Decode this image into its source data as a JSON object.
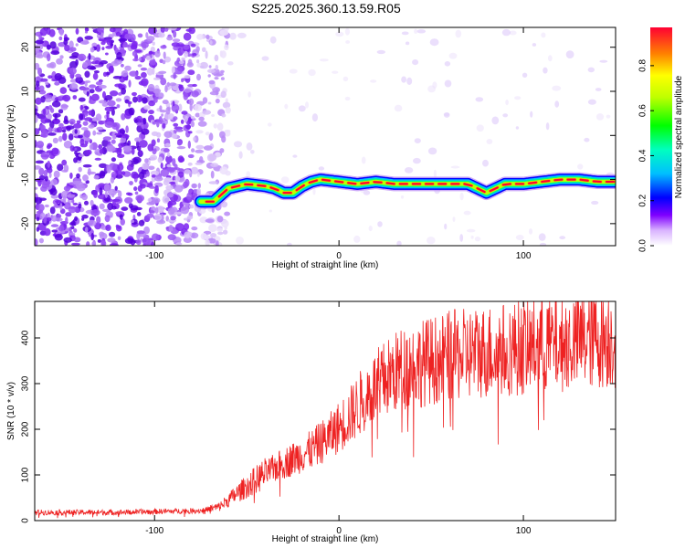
{
  "title": "S225.2025.360.13.59.R05",
  "chart_data": [
    {
      "type": "heatmap",
      "title": "S225.2025.360.13.59.R05",
      "xlabel": "Height of straight line (km)",
      "ylabel": "Frequency (Hz)",
      "xlim": [
        -165,
        150
      ],
      "ylim": [
        -25,
        24.5
      ],
      "xticks": [
        -100,
        0,
        100
      ],
      "yticks": [
        -20,
        -10,
        0,
        10,
        20
      ],
      "colorbar": {
        "label": "Normalized spectral amplitude",
        "range": [
          0,
          0.97
        ],
        "ticks": [
          0.0,
          0.2,
          0.4,
          0.6,
          0.8
        ]
      },
      "signal_ridge": {
        "description_units": "frequency in Hz vs height in km",
        "x": [
          -75,
          -68,
          -60,
          -50,
          -40,
          -35,
          -30,
          -25,
          -20,
          -15,
          -10,
          0,
          10,
          20,
          30,
          40,
          50,
          60,
          70,
          75,
          80,
          85,
          90,
          100,
          110,
          120,
          130,
          140,
          150
        ],
        "y": [
          -15,
          -15,
          -12,
          -11,
          -11.5,
          -12,
          -13,
          -13,
          -11.5,
          -10.5,
          -10,
          -10.5,
          -11,
          -10.5,
          -11,
          -11,
          -11,
          -11,
          -11,
          -12,
          -13,
          -12,
          -11,
          -11,
          -10.5,
          -10,
          -10,
          -10.5,
          -10.5
        ]
      }
    },
    {
      "type": "line",
      "xlabel": "Height of straight line (km)",
      "ylabel": "SNR (10 * v/v)",
      "xlim": [
        -165,
        150
      ],
      "ylim": [
        0,
        480
      ],
      "xticks": [
        -100,
        0,
        100
      ],
      "yticks": [
        0,
        100,
        200,
        300,
        400
      ],
      "color": "#ee2222",
      "trend": {
        "x": [
          -165,
          -120,
          -75,
          -65,
          -55,
          -45,
          -35,
          -25,
          -15,
          -5,
          5,
          15,
          25,
          35,
          50,
          60,
          70,
          80,
          90,
          100,
          110,
          120,
          130,
          140,
          150
        ],
        "y": [
          18,
          18,
          22,
          30,
          60,
          90,
          115,
          135,
          155,
          185,
          225,
          275,
          310,
          335,
          350,
          360,
          365,
          370,
          375,
          380,
          385,
          390,
          395,
          400,
          400
        ]
      }
    }
  ]
}
